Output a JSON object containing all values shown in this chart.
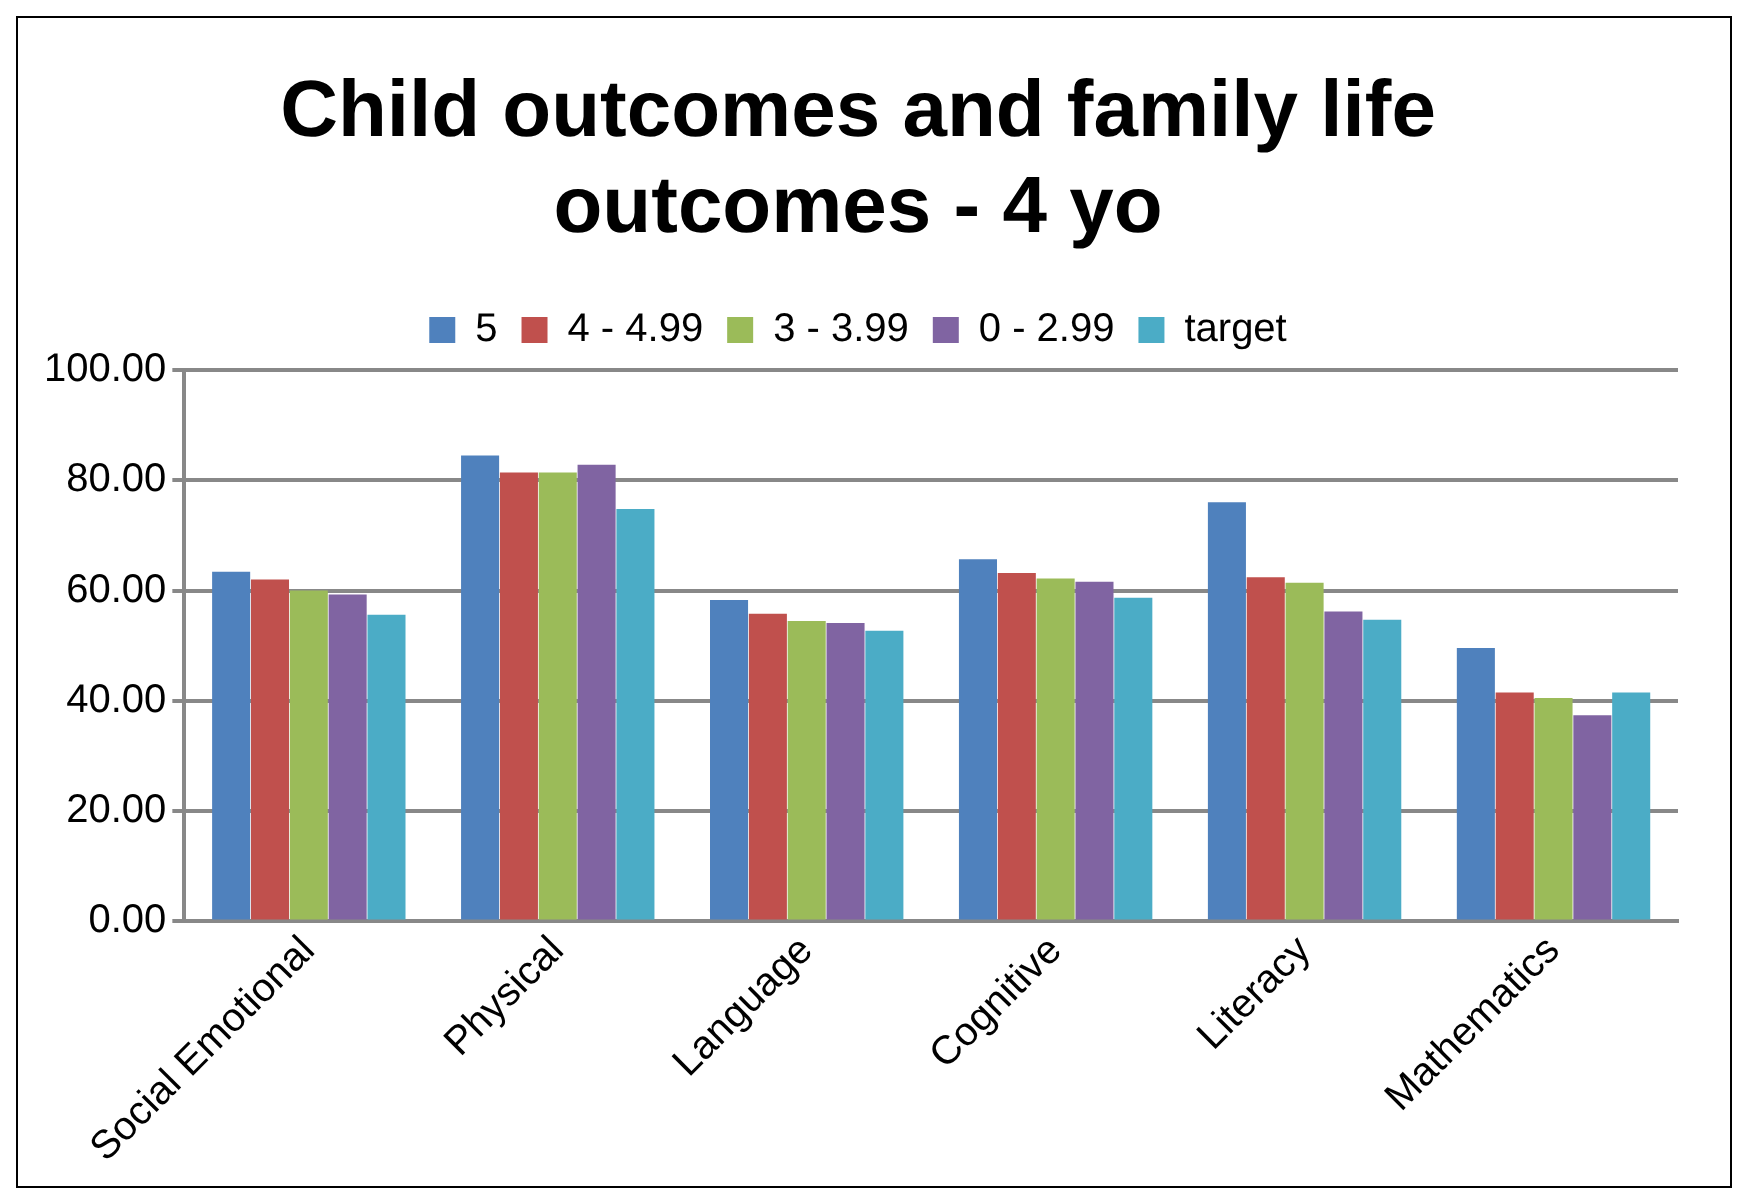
{
  "chart_data": {
    "type": "bar",
    "title": "Child outcomes and family life outcomes - 4 yo",
    "categories": [
      "Social Emotional",
      "Physical",
      "Language",
      "Cognitive",
      "Literacy",
      "Mathematics"
    ],
    "series": [
      {
        "name": "5",
        "color": "#4f81bd",
        "values": [
          63.4,
          84.5,
          58.3,
          65.7,
          76.0,
          49.6
        ]
      },
      {
        "name": "4 - 4.99",
        "color": "#c0504d",
        "values": [
          62.0,
          81.4,
          55.8,
          63.2,
          62.4,
          41.5
        ]
      },
      {
        "name": "3 - 3.99",
        "color": "#9bbb59",
        "values": [
          60.0,
          81.4,
          54.5,
          62.2,
          61.4,
          40.5
        ]
      },
      {
        "name": "0 - 2.99",
        "color": "#8064a2",
        "values": [
          59.3,
          82.8,
          54.1,
          61.6,
          56.2,
          37.4
        ]
      },
      {
        "name": "target",
        "color": "#4bacc6",
        "values": [
          55.6,
          74.8,
          52.7,
          58.7,
          54.7,
          41.5
        ]
      }
    ],
    "ylim": [
      0,
      100
    ],
    "yticks": [
      {
        "value": 0,
        "label": "0.00"
      },
      {
        "value": 20,
        "label": "20.00"
      },
      {
        "value": 40,
        "label": "40.00"
      },
      {
        "value": 60,
        "label": "60.00"
      },
      {
        "value": 80,
        "label": "80.00"
      },
      {
        "value": 100,
        "label": "100.00"
      }
    ],
    "grid": "y",
    "legend": "top"
  }
}
